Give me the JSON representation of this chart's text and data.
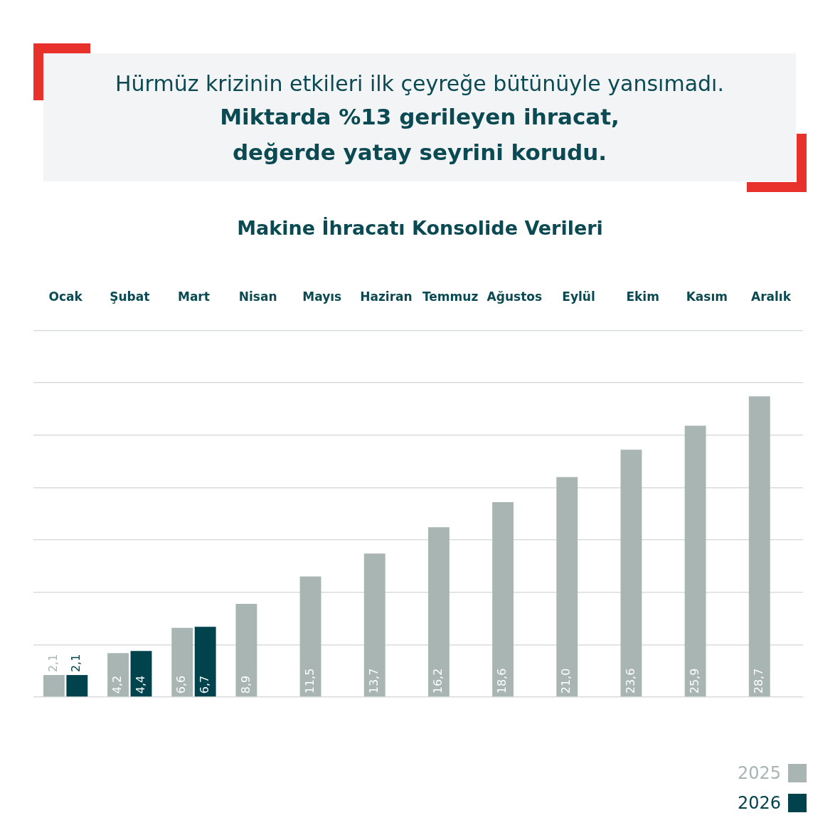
{
  "chart_data": {
    "type": "bar",
    "title": "Makine İhracatı Konsolide Verileri",
    "annotations": [
      "Hürmüz krizinin etkileri ilk çeyreğe bütünüyle yansımadı.",
      "Miktarda %13 gerileyen ihracat,\ndeğerde yatay seyrini korudu."
    ],
    "categories": [
      "Ocak",
      "Şubat",
      "Mart",
      "Nisan",
      "Mayıs",
      "Haziran",
      "Temmuz",
      "Ağustos",
      "Eylül",
      "Ekim",
      "Kasım",
      "Aralık"
    ],
    "series": [
      {
        "name": "2025",
        "color": "#a8b5b3",
        "values": [
          2.1,
          4.2,
          6.6,
          8.9,
          11.5,
          13.7,
          16.2,
          18.6,
          21.0,
          23.6,
          25.9,
          28.7
        ],
        "value_labels": [
          "2,1",
          "4,2",
          "6,6",
          "8,9",
          "11,5",
          "13,7",
          "16,2",
          "18,6",
          "21,0",
          "23,6",
          "25,9",
          "28,7"
        ]
      },
      {
        "name": "2026",
        "color": "#00434d",
        "values": [
          2.1,
          4.4,
          6.7,
          null,
          null,
          null,
          null,
          null,
          null,
          null,
          null,
          null
        ],
        "value_labels": [
          "2,1",
          "4,4",
          "6,7",
          null,
          null,
          null,
          null,
          null,
          null,
          null,
          null,
          null
        ]
      }
    ],
    "ylim": [
      0,
      35
    ],
    "yticks": [
      {
        "value": 0,
        "label": null
      },
      {
        "value": 5,
        "label": null
      },
      {
        "value": 10,
        "label": null
      },
      {
        "value": 15,
        "label": null
      },
      {
        "value": 20,
        "label": null
      },
      {
        "value": 25,
        "label": null
      },
      {
        "value": 30,
        "label": null
      },
      {
        "value": 35,
        "label": null
      }
    ],
    "grid": "y",
    "tick_labels": "x",
    "legend": "bottom right"
  }
}
